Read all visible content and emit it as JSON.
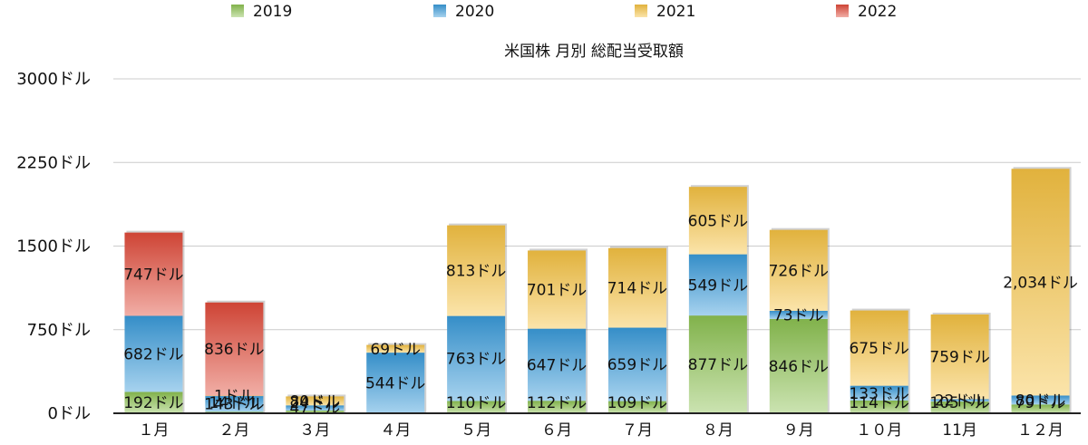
{
  "chart_data": {
    "type": "bar",
    "stacked": true,
    "title": "米国株 月別 総配当受取額",
    "xlabel": "",
    "ylabel": "",
    "ylim": [
      0,
      3000
    ],
    "yticks": [
      "0ドル",
      "750ドル",
      "1500ドル",
      "2250ドル",
      "3000ドル"
    ],
    "ytick_values": [
      0,
      750,
      1500,
      2250,
      3000
    ],
    "grid": true,
    "legend": "top",
    "categories": [
      "１月",
      "２月",
      "３月",
      "４月",
      "５月",
      "６月",
      "７月",
      "８月",
      "９月",
      "１０月",
      "11月",
      "１２月"
    ],
    "series": [
      {
        "name": "2019",
        "color": "#8cc152",
        "values": [
          192,
          14,
          24,
          0,
          110,
          112,
          109,
          877,
          846,
          114,
          105,
          79
        ],
        "labels": [
          "192ドル",
          "14ドル",
          "24ドル",
          "",
          "110ドル",
          "112ドル",
          "109ドル",
          "877ドル",
          "846ドル",
          "114ドル",
          "105ドル",
          "79ドル"
        ]
      },
      {
        "name": "2020",
        "color": "#3a9ad9",
        "values": [
          682,
          143,
          47,
          544,
          763,
          647,
          659,
          549,
          73,
          133,
          22,
          80
        ],
        "labels": [
          "682ドル",
          "143ドル",
          "47ドル",
          "544ドル",
          "763ドル",
          "647ドル",
          "659ドル",
          "549ドル",
          "73ドル",
          "133ドル",
          "22ドル",
          "80ドル"
        ]
      },
      {
        "name": "2021",
        "color": "#f5c242",
        "values": [
          0,
          1,
          80,
          69,
          813,
          701,
          714,
          605,
          726,
          675,
          759,
          2034
        ],
        "labels": [
          "",
          "1ドル",
          "80ドル",
          "69ドル",
          "813ドル",
          "701ドル",
          "714ドル",
          "605ドル",
          "726ドル",
          "675ドル",
          "759ドル",
          "2,034ドル"
        ]
      },
      {
        "name": "2022",
        "color": "#e04a3a",
        "values": [
          747,
          836,
          0,
          0,
          0,
          0,
          0,
          0,
          0,
          0,
          0,
          0
        ],
        "labels": [
          "747ドル",
          "836ドル",
          "",
          "",
          "",
          "",
          "",
          "",
          "",
          "",
          "",
          ""
        ]
      }
    ]
  }
}
